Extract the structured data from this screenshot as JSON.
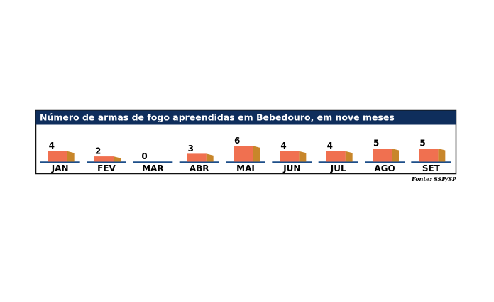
{
  "chart_data": {
    "type": "bar",
    "title": "Número de armas de fogo apreendidas em Bebedouro, em nove meses",
    "categories": [
      "JAN",
      "FEV",
      "MAR",
      "ABR",
      "MAI",
      "JUN",
      "JUL",
      "AGO",
      "SET"
    ],
    "values": [
      4,
      2,
      0,
      3,
      6,
      4,
      4,
      5,
      5
    ],
    "color": "#f07050",
    "side_color": "#c8862a",
    "baseline_color": "#1d4e89",
    "source": "Fonte: SSP/SP"
  }
}
